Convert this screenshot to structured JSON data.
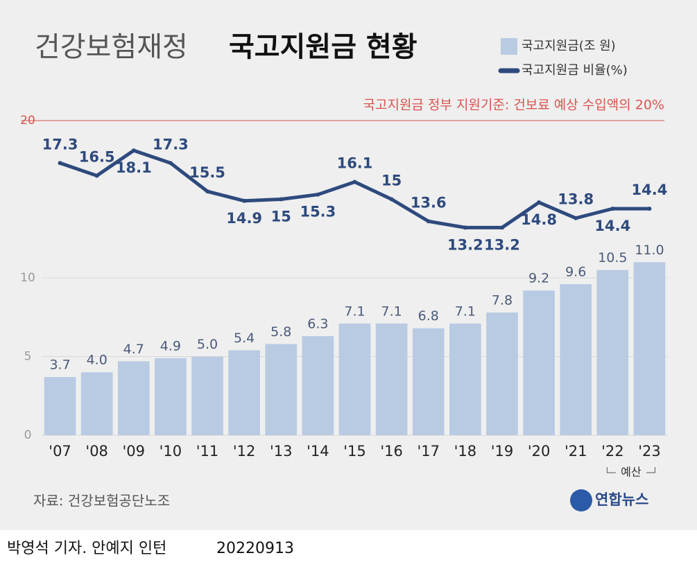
{
  "chart_data": {
    "type": "bar",
    "title": [
      "건강보험재정",
      "국고지원금 현황"
    ],
    "categories": [
      "'07",
      "'08",
      "'09",
      "'10",
      "'11",
      "'12",
      "'13",
      "'14",
      "'15",
      "'16",
      "'17",
      "'18",
      "'19",
      "'20",
      "'21",
      "'22",
      "'23"
    ],
    "series": [
      {
        "name": "국고지원금(조 원)",
        "type": "bar",
        "color": "#b8cbe3",
        "values": [
          3.7,
          4.0,
          4.7,
          4.9,
          5.0,
          5.4,
          5.8,
          6.3,
          7.1,
          7.1,
          6.8,
          7.1,
          7.8,
          9.2,
          9.6,
          10.5,
          11.0
        ],
        "value_labels": [
          "3.7",
          "4.0",
          "4.7",
          "4.9",
          "5.0",
          "5.4",
          "5.8",
          "6.3",
          "7.1",
          "7.1",
          "6.8",
          "7.1",
          "7.8",
          "9.2",
          "9.6",
          "10.5",
          "11.0"
        ]
      },
      {
        "name": "국고지원금 비율(%)",
        "type": "line",
        "color": "#2e4a7d",
        "values": [
          17.3,
          16.5,
          18.1,
          17.3,
          15.5,
          14.9,
          15.0,
          15.3,
          16.1,
          15.0,
          13.6,
          13.2,
          13.2,
          14.8,
          13.8,
          14.4,
          14.4
        ]
      }
    ],
    "ylim": [
      0,
      20
    ],
    "yticks": [
      0,
      5,
      10,
      20
    ],
    "reference": {
      "value": 20,
      "label": "국고지원금 정부 지원기준: 건보료 예상 수입액의 20%",
      "color": "#d9534f"
    },
    "budget_note": "예산",
    "source": "자료: 건강보험공단노조",
    "logo": "연합뉴스",
    "byline": "박영석 기자. 안예지 인턴",
    "date": "20220913"
  }
}
